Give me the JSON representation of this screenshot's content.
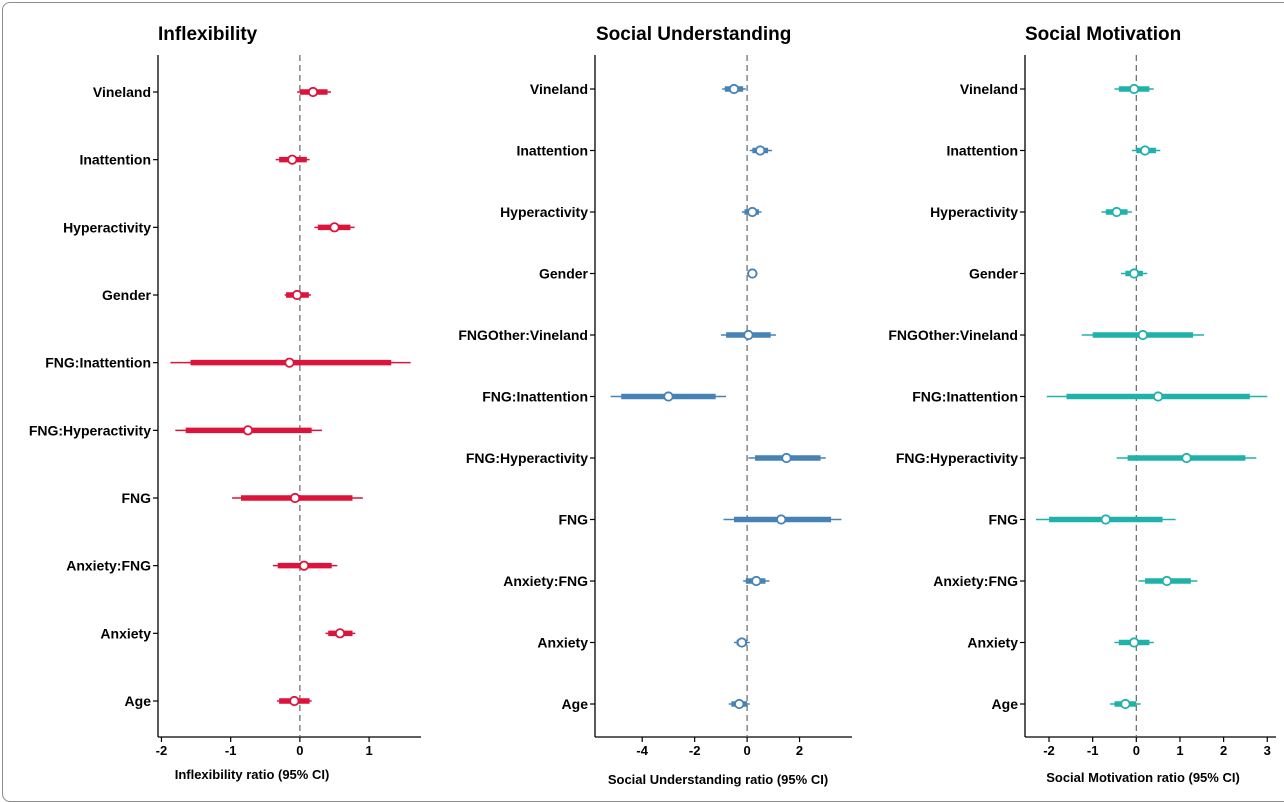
{
  "chart_data": [
    {
      "type": "forest",
      "title": "Inflexibility",
      "xlabel": "Inflexibility ratio (95% CI)",
      "color": "#dc143c",
      "xlim": [
        -2.05,
        1.75
      ],
      "xticks": [
        -2,
        -1,
        0,
        1
      ],
      "xtick_labels": [
        "-2",
        "-1",
        "0",
        "1"
      ],
      "reference_line": 0,
      "categories": [
        "Vineland",
        "Inattention",
        "Hyperactivity",
        "Gender",
        "FNG:Inattention",
        "FNG:Hyperactivity",
        "FNG",
        "Anxiety:FNG",
        "Anxiety",
        "Age"
      ],
      "estimates": [
        0.19,
        -0.11,
        0.5,
        -0.04,
        -0.15,
        -0.75,
        -0.07,
        0.06,
        0.58,
        -0.08
      ],
      "ci_inner": [
        [
          0.0,
          0.4
        ],
        [
          -0.3,
          0.1
        ],
        [
          0.26,
          0.73
        ],
        [
          -0.2,
          0.13
        ],
        [
          -1.58,
          1.32
        ],
        [
          -1.65,
          0.17
        ],
        [
          -0.85,
          0.76
        ],
        [
          -0.32,
          0.46
        ],
        [
          0.41,
          0.76
        ],
        [
          -0.3,
          0.14
        ]
      ],
      "ci_outer": [
        [
          -0.04,
          0.45
        ],
        [
          -0.35,
          0.14
        ],
        [
          0.21,
          0.79
        ],
        [
          -0.22,
          0.16
        ],
        [
          -1.87,
          1.6
        ],
        [
          -1.8,
          0.32
        ],
        [
          -0.98,
          0.91
        ],
        [
          -0.39,
          0.54
        ],
        [
          0.37,
          0.8
        ],
        [
          -0.33,
          0.17
        ]
      ]
    },
    {
      "type": "forest",
      "title": "Social Understanding",
      "xlabel": "Social Understanding ratio (95% CI)",
      "color": "#4682b4",
      "xlim": [
        -5.8,
        4.0
      ],
      "xticks": [
        -4,
        -2,
        0,
        2
      ],
      "xtick_labels": [
        "-4",
        "-2",
        "0",
        "2"
      ],
      "reference_line": 0,
      "categories": [
        "Vineland",
        "Inattention",
        "Hyperactivity",
        "Gender",
        "FNGOther:Vineland",
        "FNG:Inattention",
        "FNG:Hyperactivity",
        "FNG",
        "Anxiety:FNG",
        "Anxiety",
        "Age"
      ],
      "estimates": [
        -0.5,
        0.5,
        0.2,
        0.2,
        0.05,
        -3.0,
        1.5,
        1.3,
        0.35,
        -0.2,
        -0.3
      ],
      "ci_inner": [
        [
          -0.85,
          -0.15
        ],
        [
          0.2,
          0.8
        ],
        [
          -0.1,
          0.45
        ],
        [
          0.05,
          0.35
        ],
        [
          -0.8,
          0.9
        ],
        [
          -4.8,
          -1.2
        ],
        [
          0.3,
          2.8
        ],
        [
          -0.5,
          3.2
        ],
        [
          -0.05,
          0.7
        ],
        [
          -0.4,
          0.0
        ],
        [
          -0.6,
          0.0
        ]
      ],
      "ci_outer": [
        [
          -0.95,
          -0.05
        ],
        [
          0.1,
          0.95
        ],
        [
          -0.2,
          0.55
        ],
        [
          0.0,
          0.4
        ],
        [
          -1.0,
          1.1
        ],
        [
          -5.2,
          -0.8
        ],
        [
          0.05,
          3.0
        ],
        [
          -0.9,
          3.6
        ],
        [
          -0.15,
          0.85
        ],
        [
          -0.5,
          0.1
        ],
        [
          -0.7,
          0.1
        ]
      ]
    },
    {
      "type": "forest",
      "title": "Social Motivation",
      "xlabel": "Social Motivation ratio (95% CI)",
      "color": "#20b2aa",
      "xlim": [
        -2.55,
        3.2
      ],
      "xticks": [
        -2,
        -1,
        0,
        1,
        2,
        3
      ],
      "xtick_labels": [
        "-2",
        "-1",
        "0",
        "1",
        "2",
        "3"
      ],
      "reference_line": 0,
      "categories": [
        "Vineland",
        "Inattention",
        "Hyperactivity",
        "Gender",
        "FNGOther:Vineland",
        "FNG:Inattention",
        "FNG:Hyperactivity",
        "FNG",
        "Anxiety:FNG",
        "Anxiety",
        "Age"
      ],
      "estimates": [
        -0.05,
        0.2,
        -0.45,
        -0.05,
        0.15,
        0.5,
        1.15,
        -0.7,
        0.7,
        -0.05,
        -0.25
      ],
      "ci_inner": [
        [
          -0.4,
          0.3
        ],
        [
          0.0,
          0.45
        ],
        [
          -0.7,
          -0.2
        ],
        [
          -0.25,
          0.15
        ],
        [
          -1.0,
          1.3
        ],
        [
          -1.6,
          2.6
        ],
        [
          -0.2,
          2.5
        ],
        [
          -2.0,
          0.6
        ],
        [
          0.2,
          1.25
        ],
        [
          -0.4,
          0.3
        ],
        [
          -0.5,
          0.0
        ]
      ],
      "ci_outer": [
        [
          -0.5,
          0.4
        ],
        [
          -0.1,
          0.55
        ],
        [
          -0.8,
          -0.1
        ],
        [
          -0.35,
          0.25
        ],
        [
          -1.25,
          1.55
        ],
        [
          -2.05,
          3.0
        ],
        [
          -0.45,
          2.75
        ],
        [
          -2.3,
          0.9
        ],
        [
          0.05,
          1.4
        ],
        [
          -0.5,
          0.4
        ],
        [
          -0.6,
          0.1
        ]
      ]
    }
  ]
}
